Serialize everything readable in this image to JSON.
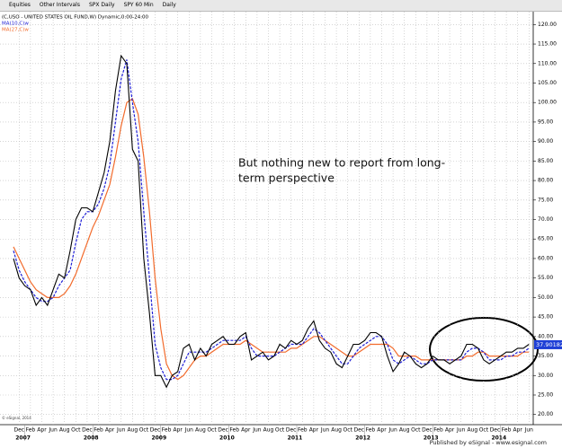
{
  "toolbar": {
    "items": [
      "Equities",
      "Other Intervals",
      "SPX Daily",
      "SPY 60 Min",
      "Daily"
    ]
  },
  "footer": {
    "publisher": "Published by eSignal - www.esignal.com",
    "copyright": "© eSignal, 2014"
  },
  "chart_data": {
    "type": "line",
    "annotation": [
      "But nothing new to report from long-",
      "term perspective"
    ],
    "categories": [
      null,
      "Dec",
      null,
      "Feb",
      null,
      "Apr",
      null,
      "Jun",
      null,
      "Aug",
      null,
      "Oct",
      null,
      "Dec",
      null,
      "Feb",
      null,
      "Apr",
      null,
      "Jun",
      null,
      "Aug",
      null,
      "Oct",
      null,
      "Dec",
      null,
      "Feb",
      null,
      "Apr",
      null,
      "Jun",
      null,
      "Aug",
      null,
      "Oct",
      null,
      "Dec",
      null,
      "Feb",
      null,
      "Apr",
      null,
      "Jun",
      null,
      "Aug",
      null,
      "Oct",
      null,
      "Dec",
      null,
      "Feb",
      null,
      "Apr",
      null,
      "Jun",
      null,
      "Aug",
      null,
      "Oct",
      null,
      "Dec",
      null,
      "Feb",
      null,
      "Apr",
      null,
      "Jun",
      null,
      "Aug",
      null,
      "Oct",
      null,
      "Dec",
      null,
      "Feb",
      null,
      "Apr",
      null,
      "Jun",
      null,
      "Aug",
      null,
      "Oct",
      null,
      "Dec",
      null,
      "Feb",
      null,
      "Apr",
      null,
      "Jun"
    ],
    "year_labels": [
      {
        "value": 2,
        "label": "2007"
      },
      {
        "value": 14,
        "label": "2008"
      },
      {
        "value": 26,
        "label": "2009"
      },
      {
        "value": 38,
        "label": "2010"
      },
      {
        "value": 50,
        "label": "2011"
      },
      {
        "value": 62,
        "label": "2012"
      },
      {
        "value": 74,
        "label": "2013"
      },
      {
        "value": 86,
        "label": "2014"
      }
    ],
    "series": [
      {
        "name": "(C,USO - UNITED STATES OIL FUND,W) Dynamic,0:00-24:00",
        "color": "#000000",
        "dashed": false,
        "values": [
          60,
          55,
          53,
          52,
          48,
          50,
          48,
          52,
          56,
          55,
          62,
          70,
          73,
          73,
          72,
          77,
          82,
          90,
          103,
          112,
          110,
          88,
          85,
          60,
          46,
          30,
          30,
          27,
          30,
          31,
          37,
          38,
          34,
          37,
          35,
          38,
          39,
          40,
          38,
          38,
          40,
          41,
          34,
          35,
          36,
          34,
          35,
          38,
          37,
          39,
          38,
          39,
          42,
          44,
          39,
          37,
          36,
          33,
          32,
          35,
          38,
          38,
          39,
          41,
          41,
          40,
          35,
          31,
          33,
          36,
          35,
          33,
          32,
          33,
          35,
          34,
          34,
          33,
          34,
          35,
          38,
          38,
          37,
          34,
          33,
          34,
          35,
          36,
          36,
          37,
          37,
          38
        ]
      },
      {
        "name": "MA(10,C)w",
        "color": "#1f1fd6",
        "dashed": true,
        "values": [
          62,
          57,
          54,
          52,
          50,
          49,
          49,
          50,
          53,
          55,
          57,
          64,
          70,
          72,
          72,
          74,
          78,
          84,
          95,
          106,
          111,
          100,
          90,
          72,
          55,
          38,
          32,
          29,
          29,
          30,
          33,
          36,
          36,
          36,
          36,
          37,
          38,
          39,
          39,
          39,
          39,
          40,
          37,
          35,
          35,
          35,
          35,
          36,
          37,
          38,
          38,
          38,
          40,
          42,
          41,
          39,
          37,
          35,
          33,
          33,
          35,
          37,
          38,
          39,
          40,
          40,
          38,
          34,
          33,
          34,
          35,
          34,
          33,
          33,
          34,
          34,
          34,
          34,
          34,
          34,
          36,
          37,
          37,
          36,
          34,
          34,
          34,
          35,
          35,
          36,
          36,
          37
        ]
      },
      {
        "name": "MA(27,C)w",
        "color": "#f26b2c",
        "dashed": false,
        "values": [
          63,
          60,
          57,
          54,
          52,
          51,
          50,
          50,
          50,
          51,
          53,
          56,
          60,
          64,
          68,
          71,
          75,
          79,
          86,
          94,
          100,
          101,
          97,
          86,
          72,
          55,
          42,
          33,
          30,
          29,
          30,
          32,
          34,
          35,
          35,
          36,
          37,
          38,
          38,
          38,
          38,
          39,
          38,
          37,
          36,
          36,
          36,
          36,
          36,
          37,
          37,
          38,
          39,
          40,
          40,
          39,
          38,
          37,
          36,
          35,
          35,
          36,
          37,
          38,
          38,
          38,
          38,
          37,
          35,
          35,
          35,
          35,
          34,
          34,
          34,
          34,
          34,
          34,
          34,
          34,
          35,
          35,
          36,
          36,
          35,
          35,
          35,
          35,
          35,
          35,
          36,
          36
        ]
      }
    ],
    "last_value": 37.90182,
    "ylim": [
      17.4,
      123.3
    ],
    "yticks": [
      {
        "value": 20,
        "label": "20.00"
      },
      {
        "value": 25,
        "label": "25.00"
      },
      {
        "value": 30,
        "label": "30.00"
      },
      {
        "value": 35,
        "label": "35.00"
      },
      {
        "value": 40,
        "label": "40.00"
      },
      {
        "value": 45,
        "label": "45.00"
      },
      {
        "value": 50,
        "label": "50.00"
      },
      {
        "value": 55,
        "label": "55.00"
      },
      {
        "value": 60,
        "label": "60.00"
      },
      {
        "value": 65,
        "label": "65.00"
      },
      {
        "value": 70,
        "label": "70.00"
      },
      {
        "value": 75,
        "label": "75.00"
      },
      {
        "value": 80,
        "label": "80.00"
      },
      {
        "value": 85,
        "label": "85.00"
      },
      {
        "value": 90,
        "label": "90.00"
      },
      {
        "value": 95,
        "label": "95.00"
      },
      {
        "value": 100,
        "label": "100.00"
      },
      {
        "value": 105,
        "label": "105.00"
      },
      {
        "value": 110,
        "label": "110.00"
      },
      {
        "value": 115,
        "label": "115.00"
      },
      {
        "value": 120,
        "label": "120.00"
      }
    ],
    "grid": true
  }
}
